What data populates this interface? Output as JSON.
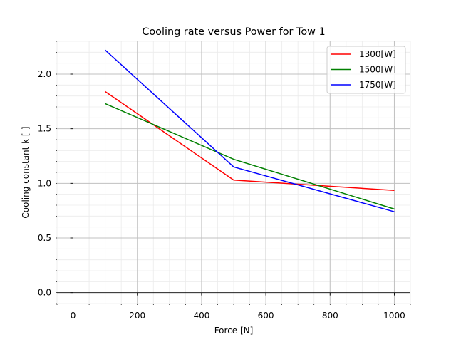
{
  "chart_data": {
    "type": "line",
    "title": "Cooling rate versus Power for Tow 1",
    "xlabel": "Force [N]",
    "ylabel": "Cooling constant k [-]",
    "xlim": [
      -50,
      1050
    ],
    "ylim": [
      -0.1,
      2.3
    ],
    "xticks": [
      0,
      200,
      400,
      600,
      800,
      1000
    ],
    "xtick_labels": [
      "0",
      "200",
      "400",
      "600",
      "800",
      "1000"
    ],
    "yticks": [
      0.0,
      0.5,
      1.0,
      1.5,
      2.0
    ],
    "ytick_labels": [
      "0.0",
      "0.5",
      "1.0",
      "1.5",
      "2.0"
    ],
    "grid": true,
    "legend_position": "top-right",
    "series": [
      {
        "name": "1300[W]",
        "color": "#ff0000",
        "x": [
          100,
          500,
          1000
        ],
        "y": [
          1.84,
          1.03,
          0.935
        ]
      },
      {
        "name": "1500[W]",
        "color": "#008000",
        "x": [
          100,
          500,
          1000
        ],
        "y": [
          1.73,
          1.22,
          0.765
        ]
      },
      {
        "name": "1750[W]",
        "color": "#0000ff",
        "x": [
          100,
          500,
          1000
        ],
        "y": [
          2.22,
          1.15,
          0.74
        ]
      }
    ]
  }
}
